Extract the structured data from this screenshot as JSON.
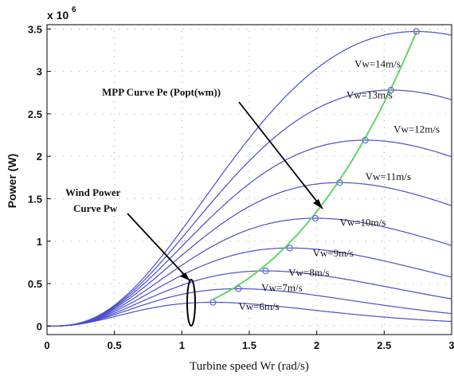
{
  "chart_data": {
    "type": "line",
    "title": "",
    "xlabel": "Turbine speed Wr (rad/s)",
    "ylabel": "Power (W)",
    "y_multiplier_label": "x 10",
    "y_multiplier_exponent": "6",
    "xlim": [
      0,
      3
    ],
    "ylim": [
      -0.1,
      3.55
    ],
    "x_ticks": [
      "0",
      "0.5",
      "1",
      "1.5",
      "2",
      "2.5",
      "3"
    ],
    "y_ticks": [
      "0",
      "0.5",
      "1",
      "1.5",
      "2",
      "2.5",
      "3",
      "3.5"
    ],
    "grid": "dotted",
    "series": [
      {
        "name": "Vw=6m/s",
        "opt_x": 1.23,
        "opt_y": 0.28
      },
      {
        "name": "Vw=7m/s",
        "opt_x": 1.42,
        "opt_y": 0.44
      },
      {
        "name": "Vw=8m/s",
        "opt_x": 1.62,
        "opt_y": 0.65
      },
      {
        "name": "Vw=9m/s",
        "opt_x": 1.8,
        "opt_y": 0.92
      },
      {
        "name": "Vw=10m/s",
        "opt_x": 1.99,
        "opt_y": 1.27
      },
      {
        "name": "Vw=11m/s",
        "opt_x": 2.17,
        "opt_y": 1.69
      },
      {
        "name": "Vw=12m/s",
        "opt_x": 2.36,
        "opt_y": 2.19
      },
      {
        "name": "Vw=13m/s",
        "opt_x": 2.55,
        "opt_y": 2.78
      },
      {
        "name": "Vw=14m/s",
        "opt_x": 2.74,
        "opt_y": 3.47
      }
    ],
    "mpp_curve": {
      "x": [
        1.23,
        1.42,
        1.62,
        1.8,
        1.99,
        2.17,
        2.36,
        2.55,
        2.74
      ],
      "y": [
        0.28,
        0.44,
        0.65,
        0.92,
        1.27,
        1.69,
        2.19,
        2.78,
        3.47
      ]
    },
    "annotations": {
      "mpp": "MPP Curve Pe (Popt(wm))",
      "wind_line1": "Wind Power",
      "wind_line2": "Curve Pw"
    },
    "colors": {
      "curves": "#4a4ecb",
      "mpp_curve": "#63d663",
      "markers": "#6c70d8",
      "grid": "#9a9a9a"
    }
  }
}
